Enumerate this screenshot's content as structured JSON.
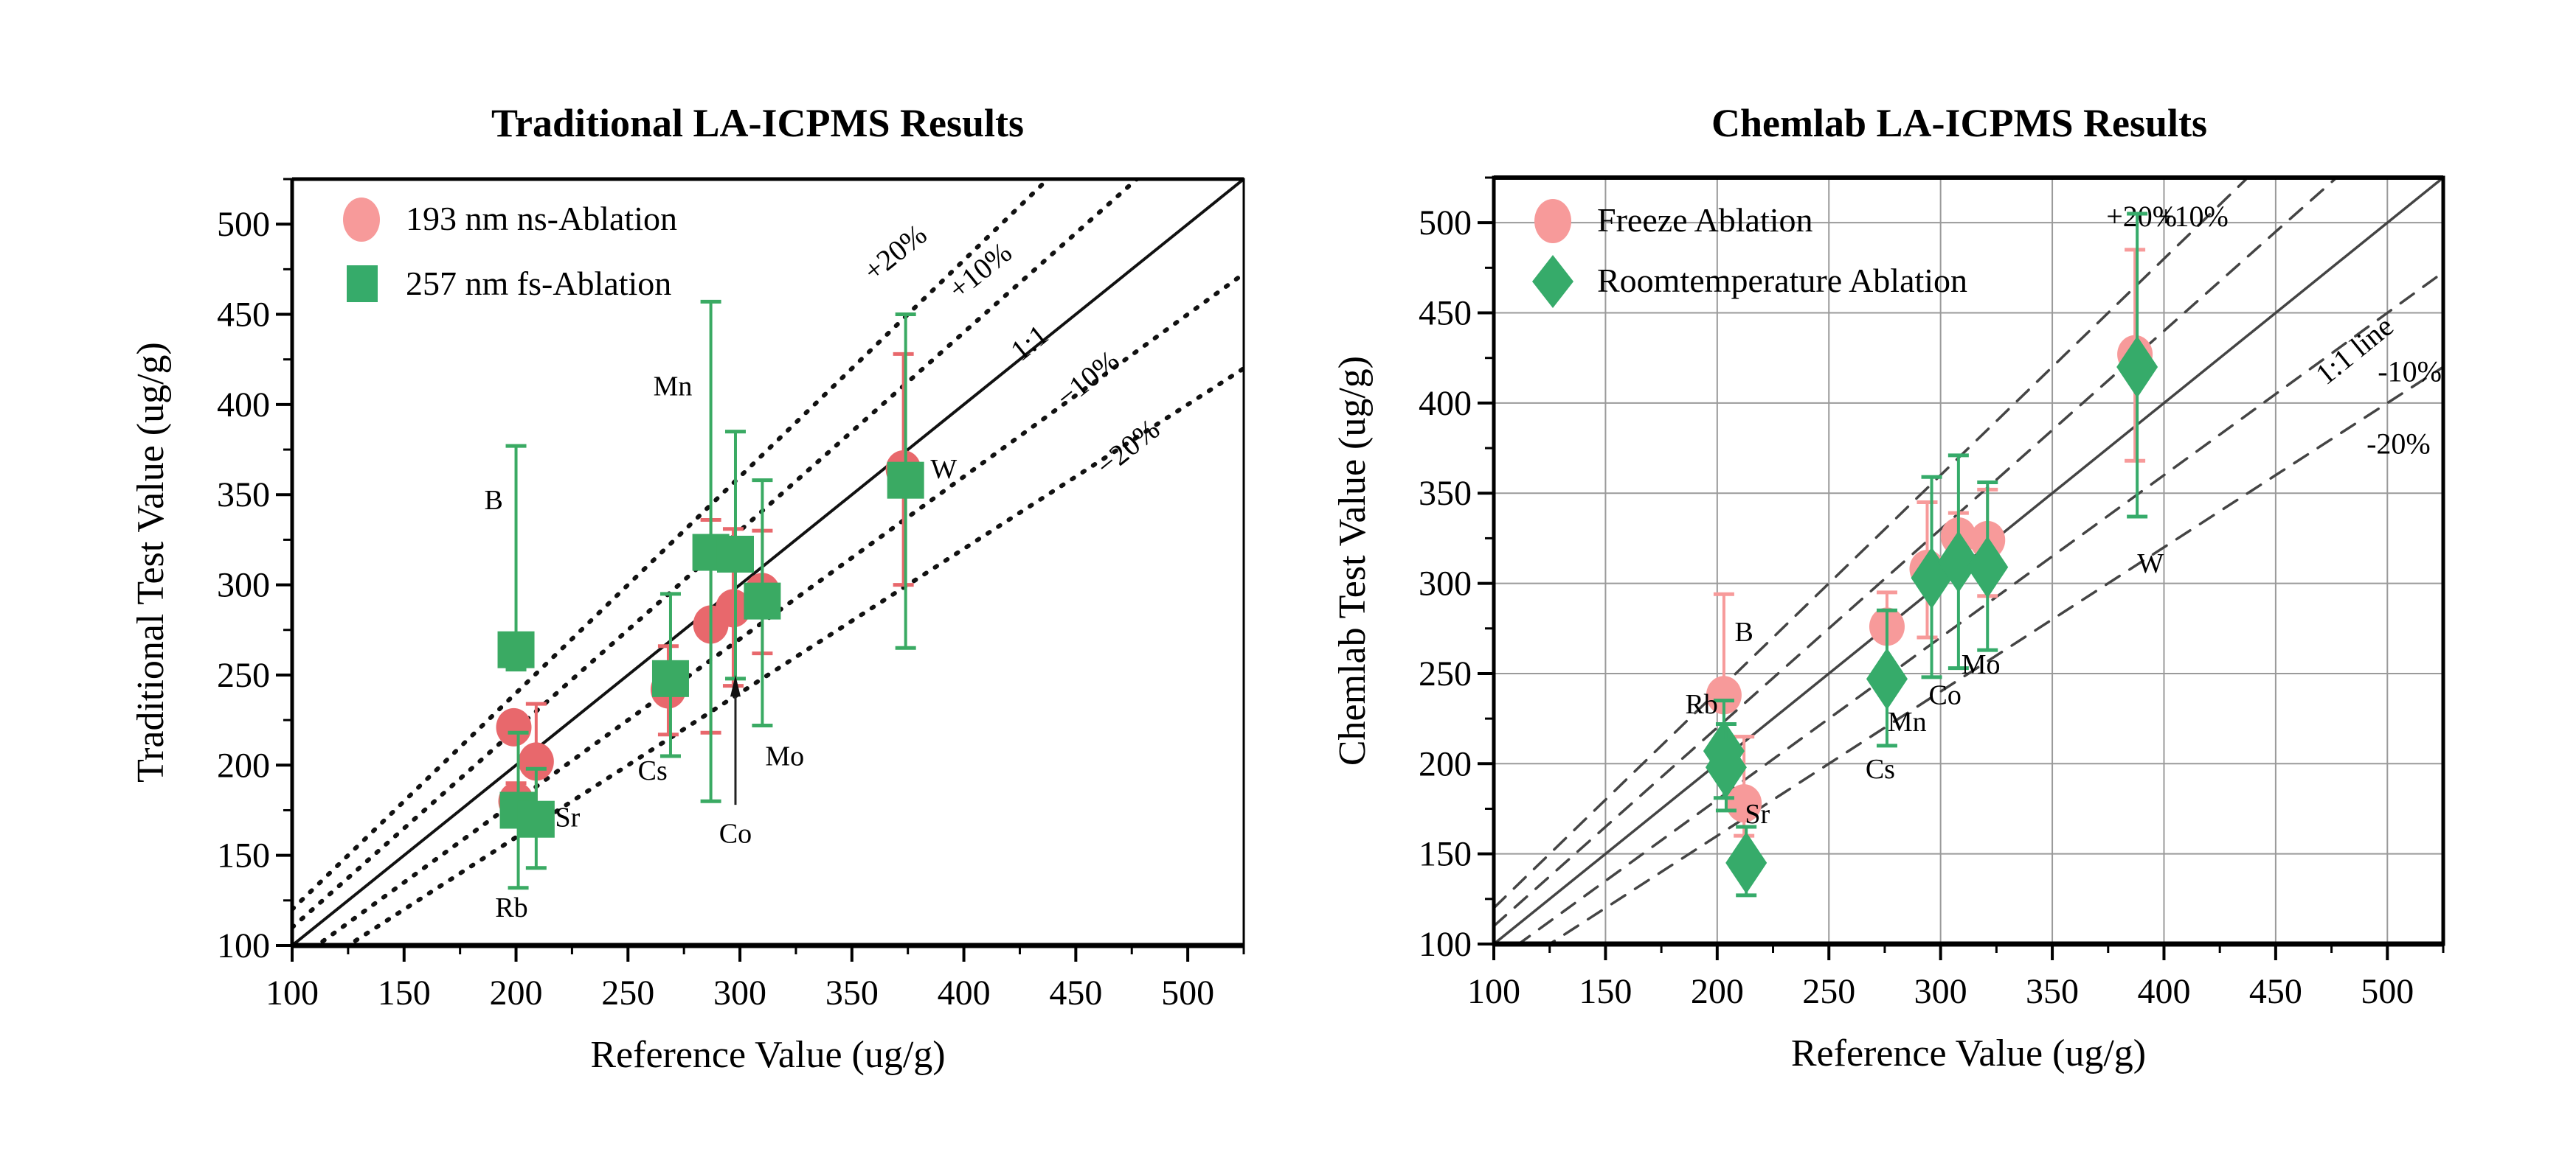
{
  "chart_data": [
    {
      "type": "scatter",
      "title": "Traditional LA-ICPMS Results",
      "xlabel": "Reference Value (ug/g)",
      "ylabel": "Traditional Test Value (ug/g)",
      "xlim": [
        100,
        525
      ],
      "ylim": [
        100,
        525
      ],
      "xticks": [
        100,
        150,
        200,
        250,
        300,
        350,
        400,
        450,
        500
      ],
      "yticks": [
        100,
        150,
        200,
        250,
        300,
        350,
        400,
        450,
        500
      ],
      "grid": false,
      "legend_position": "top-left",
      "reference_lines": [
        {
          "label": "+20%",
          "factor": 1.2,
          "style": "dotted"
        },
        {
          "label": "+10%",
          "factor": 1.1,
          "style": "dotted"
        },
        {
          "label": "1:1",
          "factor": 1.0,
          "style": "solid"
        },
        {
          "label": "−10%",
          "factor": 0.9,
          "style": "dotted"
        },
        {
          "label": "−20%",
          "factor": 0.8,
          "style": "dotted"
        }
      ],
      "series": [
        {
          "name": "193 nm ns-Ablation",
          "marker": "circle",
          "color": "#e8686c",
          "legend_color": "#f79a9a",
          "points": [
            {
              "x": 199,
              "y": 221,
              "ylo": 221,
              "yhi": 221
            },
            {
              "x": 209,
              "y": 202,
              "ylo": 178,
              "yhi": 234
            },
            {
              "x": 200,
              "y": 180,
              "ylo": 170,
              "yhi": 190
            },
            {
              "x": 268,
              "y": 242,
              "ylo": 217,
              "yhi": 266
            },
            {
              "x": 287,
              "y": 278,
              "ylo": 218,
              "yhi": 336
            },
            {
              "x": 297,
              "y": 287,
              "ylo": 244,
              "yhi": 331
            },
            {
              "x": 310,
              "y": 296,
              "ylo": 262,
              "yhi": 330
            },
            {
              "x": 373,
              "y": 364,
              "ylo": 300,
              "yhi": 428
            }
          ]
        },
        {
          "name": "257 nm fs-Ablation",
          "marker": "square",
          "color": "#3aaa63",
          "legend_color": "#36ab6a",
          "points": [
            {
              "x": 200,
              "y": 264,
              "ylo": 253,
              "yhi": 377
            },
            {
              "x": 201,
              "y": 175,
              "ylo": 132,
              "yhi": 218
            },
            {
              "x": 209,
              "y": 170,
              "ylo": 143,
              "yhi": 198
            },
            {
              "x": 269,
              "y": 248,
              "ylo": 205,
              "yhi": 295
            },
            {
              "x": 287,
              "y": 318,
              "ylo": 180,
              "yhi": 457
            },
            {
              "x": 298,
              "y": 317,
              "ylo": 248,
              "yhi": 385
            },
            {
              "x": 310,
              "y": 291,
              "ylo": 222,
              "yhi": 358
            },
            {
              "x": 374,
              "y": 358,
              "ylo": 265,
              "yhi": 450
            }
          ]
        }
      ],
      "annotations": [
        {
          "text": "B",
          "x": 190,
          "y": 342
        },
        {
          "text": "Mn",
          "x": 270,
          "y": 405
        },
        {
          "text": "W",
          "x": 391,
          "y": 359
        },
        {
          "text": "Cs",
          "x": 261,
          "y": 192
        },
        {
          "text": "Mo",
          "x": 320,
          "y": 200
        },
        {
          "text": "Co",
          "x": 298,
          "y": 157
        },
        {
          "text": "Sr",
          "x": 223,
          "y": 166
        },
        {
          "text": "Rb",
          "x": 198,
          "y": 116
        }
      ]
    },
    {
      "type": "scatter",
      "title": "Chemlab LA-ICPMS Results",
      "xlabel": "Reference Value (ug/g)",
      "ylabel": "Chemlab Test Value (ug/g)",
      "xlim": [
        100,
        525
      ],
      "ylim": [
        100,
        525
      ],
      "xticks": [
        100,
        150,
        200,
        250,
        300,
        350,
        400,
        450,
        500
      ],
      "yticks": [
        100,
        150,
        200,
        250,
        300,
        350,
        400,
        450,
        500
      ],
      "grid": true,
      "legend_position": "top-left",
      "reference_lines": [
        {
          "label": "+20%",
          "factor": 1.2,
          "style": "dashed"
        },
        {
          "label": "+10%",
          "factor": 1.1,
          "style": "dashed"
        },
        {
          "label": "1:1 line",
          "factor": 1.0,
          "style": "solid"
        },
        {
          "label": "-10%",
          "factor": 0.9,
          "style": "dashed"
        },
        {
          "label": "-20%",
          "factor": 0.8,
          "style": "dashed"
        }
      ],
      "series": [
        {
          "name": "Freeze Ablation",
          "marker": "circle",
          "color": "#f79a9a",
          "points": [
            {
              "x": 203,
              "y": 238,
              "ylo": 238,
              "yhi": 294
            },
            {
              "x": 212,
              "y": 178,
              "ylo": 160,
              "yhi": 215
            },
            {
              "x": 276,
              "y": 276,
              "ylo": 276,
              "yhi": 295
            },
            {
              "x": 294,
              "y": 308,
              "ylo": 270,
              "yhi": 345
            },
            {
              "x": 308,
              "y": 326,
              "ylo": 310,
              "yhi": 339
            },
            {
              "x": 321,
              "y": 324,
              "ylo": 293,
              "yhi": 352
            },
            {
              "x": 387,
              "y": 427,
              "ylo": 368,
              "yhi": 485
            }
          ]
        },
        {
          "name": "Roomtemperature Ablation",
          "marker": "diamond",
          "color": "#36ab6a",
          "points": [
            {
              "x": 203,
              "y": 207,
              "ylo": 181,
              "yhi": 235
            },
            {
              "x": 204,
              "y": 198,
              "ylo": 174,
              "yhi": 222
            },
            {
              "x": 213,
              "y": 145,
              "ylo": 127,
              "yhi": 165
            },
            {
              "x": 276,
              "y": 247,
              "ylo": 210,
              "yhi": 285
            },
            {
              "x": 296,
              "y": 303,
              "ylo": 248,
              "yhi": 359
            },
            {
              "x": 308,
              "y": 312,
              "ylo": 253,
              "yhi": 371
            },
            {
              "x": 321,
              "y": 309,
              "ylo": 263,
              "yhi": 356
            },
            {
              "x": 388,
              "y": 420,
              "ylo": 337,
              "yhi": 505
            }
          ]
        }
      ],
      "annotations": [
        {
          "text": "B",
          "x": 212,
          "y": 268
        },
        {
          "text": "Rb",
          "x": 193,
          "y": 228
        },
        {
          "text": "Sr",
          "x": 218,
          "y": 167
        },
        {
          "text": "Cs",
          "x": 273,
          "y": 192
        },
        {
          "text": "Mn",
          "x": 285,
          "y": 218
        },
        {
          "text": "Co",
          "x": 302,
          "y": 233
        },
        {
          "text": "Mo",
          "x": 318,
          "y": 250
        },
        {
          "text": "W",
          "x": 394,
          "y": 306
        }
      ]
    }
  ]
}
